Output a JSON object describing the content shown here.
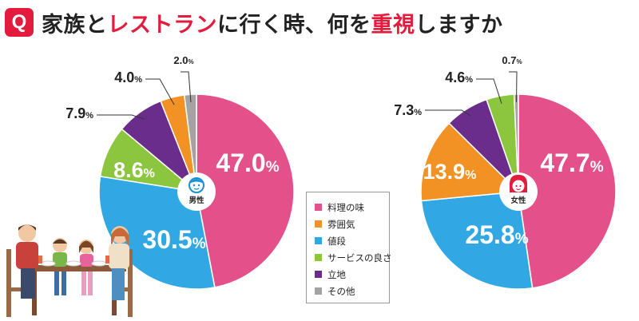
{
  "header": {
    "badge": "Q",
    "title_parts": [
      {
        "text": "家族と",
        "highlight": false
      },
      {
        "text": "レストラン",
        "highlight": true
      },
      {
        "text": "に行く時、何を",
        "highlight": false
      },
      {
        "text": "重視",
        "highlight": true
      },
      {
        "text": "しますか",
        "highlight": false
      }
    ]
  },
  "legend": [
    {
      "label": "料理の味",
      "color": "#e4508a"
    },
    {
      "label": "雰囲気",
      "color": "#f39224"
    },
    {
      "label": "値段",
      "color": "#31a8e3"
    },
    {
      "label": "サービスの良さ",
      "color": "#8cc63f"
    },
    {
      "label": "立地",
      "color": "#6b2d8c"
    },
    {
      "label": "その他",
      "color": "#a3a3a3"
    }
  ],
  "chart_data": [
    {
      "type": "pie",
      "center_label": "男性",
      "center_icon": "man-face-icon",
      "slices": [
        {
          "label": "料理の味",
          "value": 47.0,
          "display": "47.0%",
          "color": "#e4508a"
        },
        {
          "label": "値段",
          "value": 30.5,
          "display": "30.5%",
          "color": "#31a8e3"
        },
        {
          "label": "サービスの良さ",
          "value": 8.6,
          "display": "8.6%",
          "color": "#8cc63f"
        },
        {
          "label": "立地",
          "value": 7.9,
          "display": "7.9%",
          "color": "#6b2d8c"
        },
        {
          "label": "雰囲気",
          "value": 4.0,
          "display": "4.0%",
          "color": "#f39224"
        },
        {
          "label": "その他",
          "value": 2.0,
          "display": "2.0%",
          "color": "#a3a3a3"
        }
      ]
    },
    {
      "type": "pie",
      "center_label": "女性",
      "center_icon": "woman-face-icon",
      "slices": [
        {
          "label": "料理の味",
          "value": 47.7,
          "display": "47.7%",
          "color": "#e4508a"
        },
        {
          "label": "値段",
          "value": 25.8,
          "display": "25.8%",
          "color": "#31a8e3"
        },
        {
          "label": "雰囲気",
          "value": 13.9,
          "display": "13.9%",
          "color": "#f39224"
        },
        {
          "label": "立地",
          "value": 7.3,
          "display": "7.3%",
          "color": "#6b2d8c"
        },
        {
          "label": "サービスの良さ",
          "value": 4.6,
          "display": "4.6%",
          "color": "#8cc63f"
        },
        {
          "label": "その他",
          "value": 0.7,
          "display": "0.7%",
          "color": "#a3a3a3"
        }
      ]
    }
  ]
}
